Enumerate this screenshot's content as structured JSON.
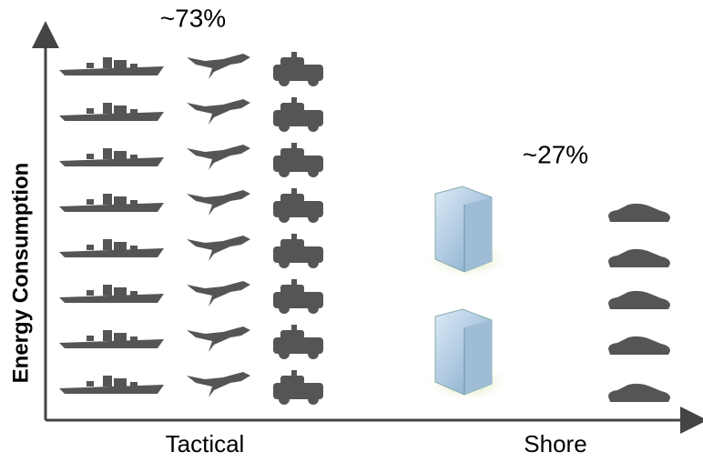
{
  "chart_data": {
    "type": "pictogram",
    "y_label": "Energy Consumption",
    "categories": [
      "Tactical",
      "Shore"
    ],
    "values": [
      73,
      27
    ],
    "value_labels": [
      "~73%",
      "~27%"
    ],
    "color": "#555555"
  }
}
